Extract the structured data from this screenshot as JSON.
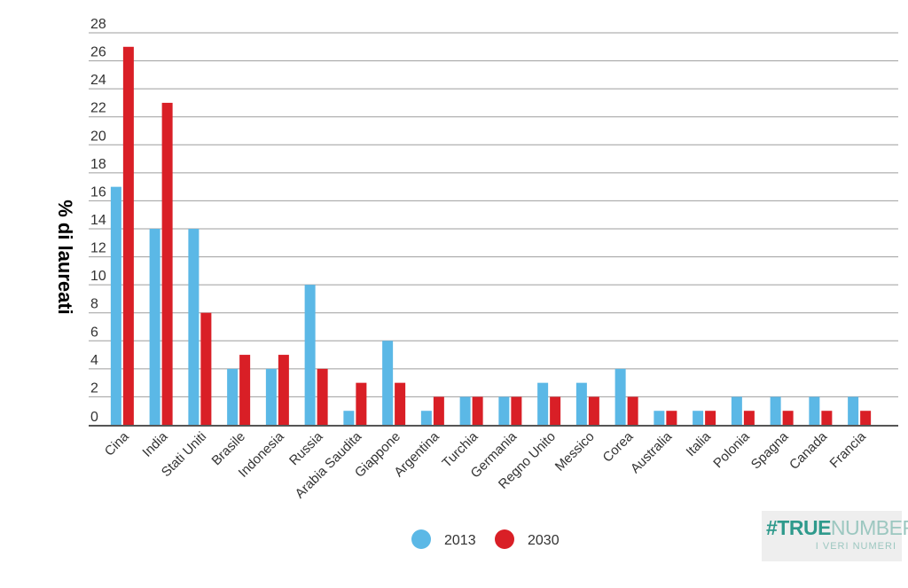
{
  "chart_data": {
    "type": "bar",
    "ylabel": "% di laureati",
    "xlabel": "",
    "ylim": [
      0,
      28
    ],
    "yticks": [
      0,
      2,
      4,
      6,
      8,
      10,
      12,
      14,
      16,
      18,
      20,
      22,
      24,
      26,
      28
    ],
    "grid": true,
    "legend_position": "bottom-center",
    "categories": [
      "Cina",
      "India",
      "Stati Uniti",
      "Brasile",
      "Indonesia",
      "Russia",
      "Arabia Saudita",
      "Giappone",
      "Argentina",
      "Turchia",
      "Germania",
      "Regno Unito",
      "Messico",
      "Corea",
      "Australia",
      "Italia",
      "Polonia",
      "Spagna",
      "Canada",
      "Francia"
    ],
    "series": [
      {
        "name": "2013",
        "color": "#5bb8e6",
        "values": [
          17,
          14,
          14,
          4,
          4,
          10,
          1,
          6,
          1,
          2,
          2,
          3,
          3,
          4,
          1,
          1,
          2,
          2,
          2,
          2
        ]
      },
      {
        "name": "2030",
        "color": "#d91f26",
        "values": [
          27,
          23,
          8,
          5,
          5,
          4,
          3,
          3,
          2,
          2,
          2,
          2,
          2,
          2,
          1,
          1,
          1,
          1,
          1,
          1
        ]
      }
    ]
  },
  "logo": {
    "hash": "#",
    "bold": "TRUE",
    "light": "NUMBERS",
    "tagline": "I VERI NUMERI"
  }
}
